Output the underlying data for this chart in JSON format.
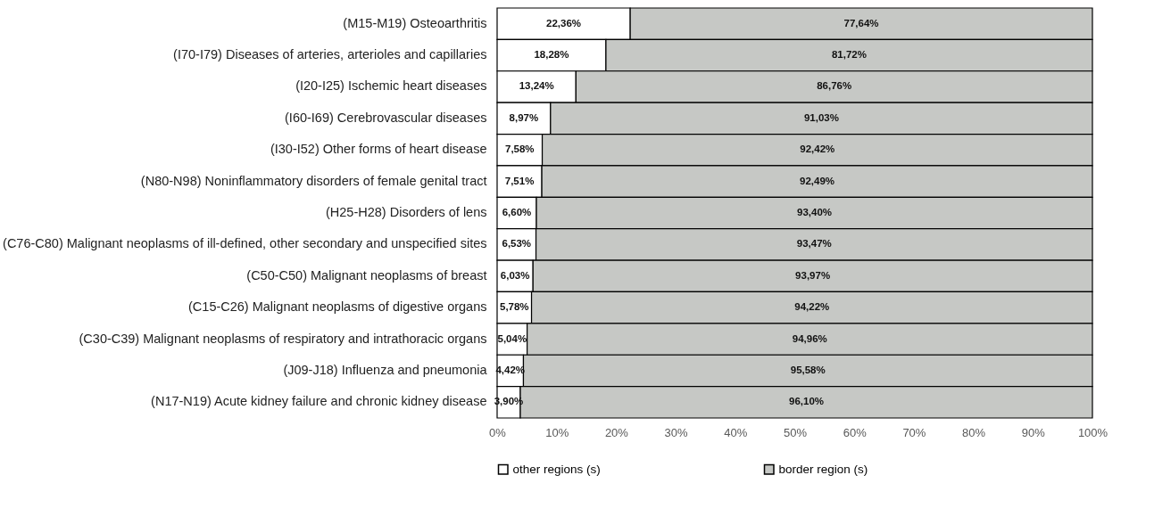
{
  "chart_data": {
    "type": "bar",
    "orientation": "horizontal",
    "stacked": true,
    "categories": [
      "(M15-M19) Osteoarthritis",
      "(I70-I79) Diseases of arteries, arterioles and capillaries",
      "(I20-I25) Ischemic heart diseases",
      "(I60-I69) Cerebrovascular diseases",
      "(I30-I52) Other forms of heart disease",
      "(N80-N98) Noninflammatory disorders of female genital tract",
      "(H25-H28) Disorders of lens",
      "(C76-C80) Malignant neoplasms of ill-defined, other secondary and unspecified sites",
      "(C50-C50) Malignant neoplasms of breast",
      "(C15-C26) Malignant neoplasms of digestive organs",
      "(C30-C39) Malignant neoplasms of respiratory and intrathoracic organs",
      "(J09-J18) Influenza and pneumonia",
      "(N17-N19) Acute kidney failure and chronic kidney disease"
    ],
    "series": [
      {
        "name": "other regions (s)",
        "color": "#ffffff",
        "values": [
          22.36,
          18.28,
          13.24,
          8.97,
          7.58,
          7.51,
          6.6,
          6.53,
          6.03,
          5.78,
          5.04,
          4.42,
          3.9
        ],
        "value_labels": [
          "22,36%",
          "18,28%",
          "13,24%",
          "8,97%",
          "7,58%",
          "7,51%",
          "6,60%",
          "6,53%",
          "6,03%",
          "5,78%",
          "5,04%",
          "4,42%",
          "3,90%"
        ]
      },
      {
        "name": "border region (s)",
        "color": "#c6c8c5",
        "values": [
          77.64,
          81.72,
          86.76,
          91.03,
          92.42,
          92.49,
          93.4,
          93.47,
          93.97,
          94.22,
          94.96,
          95.58,
          96.1
        ],
        "value_labels": [
          "77,64%",
          "81,72%",
          "86,76%",
          "91,03%",
          "92,42%",
          "92,49%",
          "93,40%",
          "93,47%",
          "93,97%",
          "94,22%",
          "94,96%",
          "95,58%",
          "96,10%"
        ]
      }
    ],
    "xlim": [
      0,
      100
    ],
    "xticks": [
      {
        "value": 0,
        "label": "0%"
      },
      {
        "value": 10,
        "label": "10%"
      },
      {
        "value": 20,
        "label": "20%"
      },
      {
        "value": 30,
        "label": "30%"
      },
      {
        "value": 40,
        "label": "40%"
      },
      {
        "value": 50,
        "label": "50%"
      },
      {
        "value": 60,
        "label": "60%"
      },
      {
        "value": 70,
        "label": "70%"
      },
      {
        "value": 80,
        "label": "80%"
      },
      {
        "value": 90,
        "label": "90%"
      },
      {
        "value": 100,
        "label": "100%"
      }
    ],
    "grid": false,
    "legend": "bottom"
  }
}
